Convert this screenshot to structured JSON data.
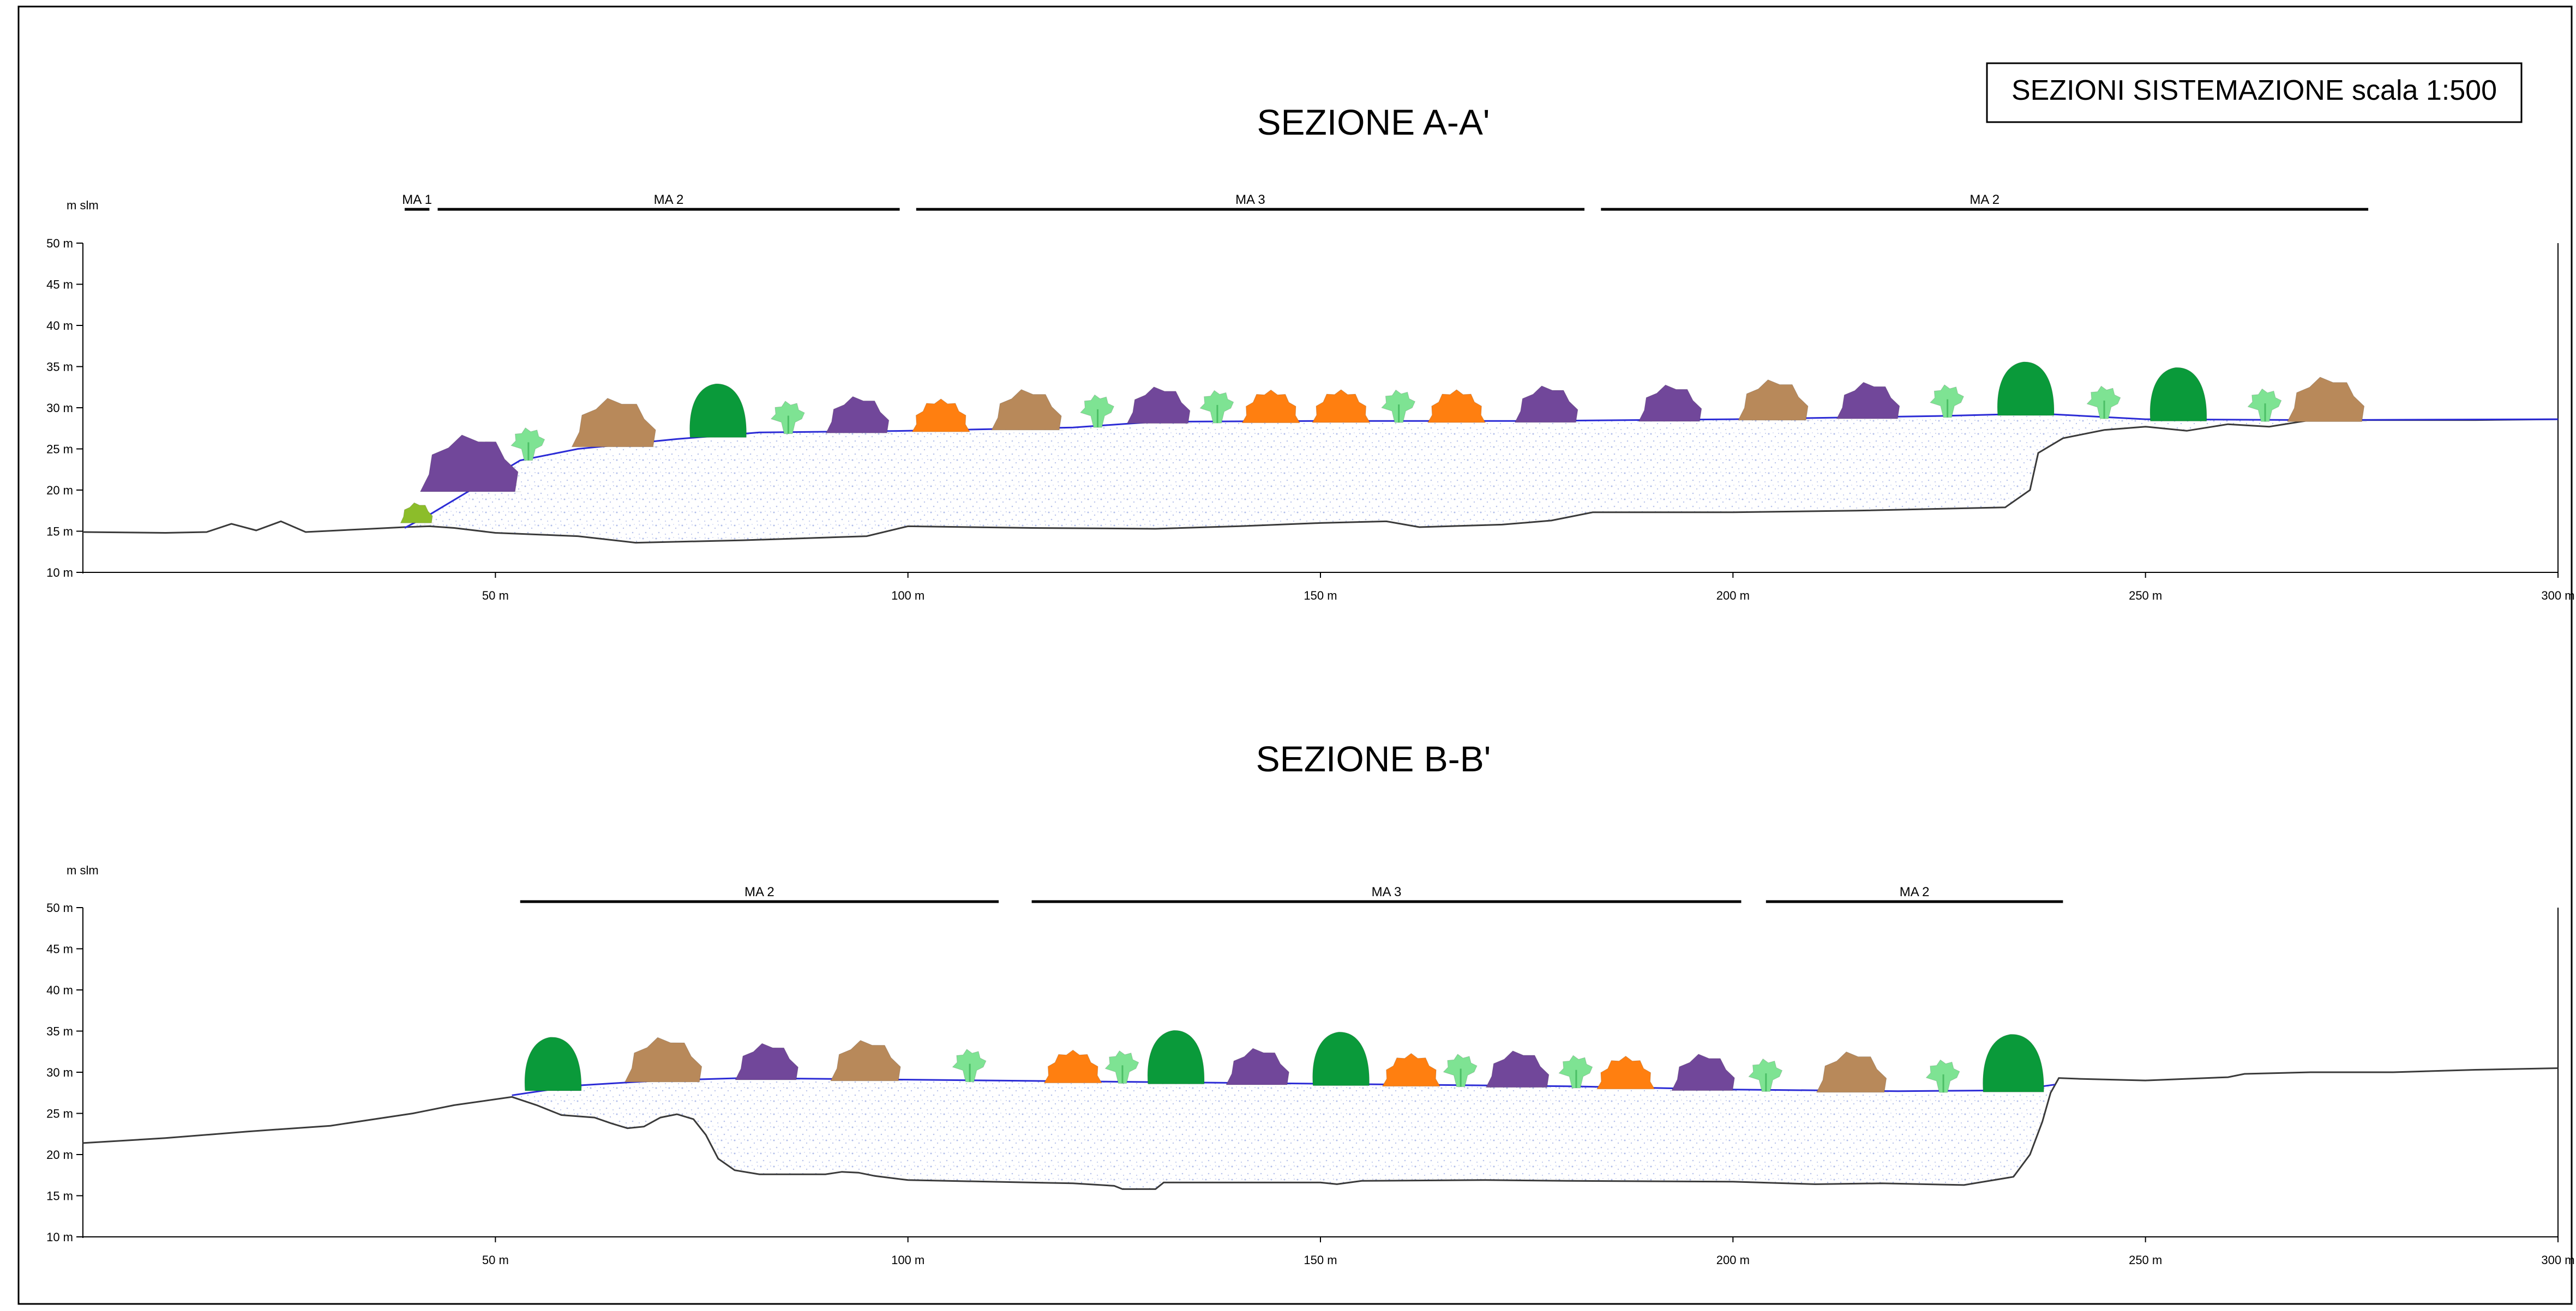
{
  "sheet_title": "SEZIONI SISTEMAZIONE scala 1:500",
  "colors": {
    "ground": "#3a3a3a",
    "design_profile": "#2b2bd6",
    "fill_dots": "#6f86d8",
    "dark_green_shrub": "#0a9a3a",
    "brown_shrub": "#b8895a",
    "purple_shrub": "#71479a",
    "orange_shrub": "#ff7f10",
    "light_green_herb": "#7ee393",
    "olive_shrub": "#8cbd2a"
  },
  "sections": [
    {
      "title": "SEZIONE A-A'",
      "y_unit_label": "m slm",
      "y_ticks": [
        "50 m",
        "45 m",
        "40 m",
        "35 m",
        "30 m",
        "25 m",
        "20 m",
        "15 m",
        "10 m"
      ],
      "x_ticks": [
        "50 m",
        "100 m",
        "150 m",
        "200 m",
        "250 m",
        "300 m"
      ],
      "x_range": [
        0,
        300
      ],
      "y_range": [
        10,
        50
      ],
      "zones": [
        {
          "label": "MA 1",
          "from": 39,
          "to": 42
        },
        {
          "label": "MA 2",
          "from": 43,
          "to": 99
        },
        {
          "label": "MA 3",
          "from": 101,
          "to": 182
        },
        {
          "label": "MA 2",
          "from": 184,
          "to": 277
        }
      ],
      "existing_ground": [
        [
          0,
          14.9
        ],
        [
          10,
          14.8
        ],
        [
          15,
          14.9
        ],
        [
          18,
          15.9
        ],
        [
          21,
          15.1
        ],
        [
          24,
          16.2
        ],
        [
          27,
          14.9
        ],
        [
          35,
          15.3
        ],
        [
          39,
          15.5
        ],
        [
          42,
          15.6
        ],
        [
          45,
          15.4
        ],
        [
          50,
          14.8
        ],
        [
          60,
          14.4
        ],
        [
          67,
          13.6
        ],
        [
          80,
          13.9
        ],
        [
          95,
          14.4
        ],
        [
          100,
          15.6
        ],
        [
          115,
          15.4
        ],
        [
          130,
          15.3
        ],
        [
          140,
          15.6
        ],
        [
          150,
          16
        ],
        [
          158,
          16.2
        ],
        [
          162,
          15.5
        ],
        [
          172,
          15.8
        ],
        [
          178,
          16.3
        ],
        [
          183,
          17.3
        ],
        [
          200,
          17.3
        ],
        [
          215,
          17.5
        ],
        [
          233,
          17.9
        ],
        [
          236,
          20
        ],
        [
          237,
          24.5
        ],
        [
          240,
          26.3
        ],
        [
          245,
          27.3
        ],
        [
          250,
          27.7
        ],
        [
          255,
          27.2
        ],
        [
          260,
          28
        ],
        [
          265,
          27.7
        ],
        [
          270,
          28.5
        ],
        [
          280,
          28.5
        ],
        [
          290,
          28.5
        ],
        [
          300,
          28.6
        ]
      ],
      "design_profile": [
        [
          39,
          15.4
        ],
        [
          42,
          17
        ],
        [
          53,
          23.6
        ],
        [
          60,
          25
        ],
        [
          72,
          26.2
        ],
        [
          82,
          27
        ],
        [
          100,
          27.2
        ],
        [
          120,
          27.6
        ],
        [
          130,
          28.3
        ],
        [
          150,
          28.4
        ],
        [
          175,
          28.4
        ],
        [
          200,
          28.6
        ],
        [
          225,
          29
        ],
        [
          237,
          29.3
        ],
        [
          250,
          28.6
        ],
        [
          270,
          28.5
        ],
        [
          300,
          28.6
        ]
      ],
      "shrubs": [
        {
          "type": "olive",
          "x": 40.5,
          "h": 2.5
        },
        {
          "type": "purple",
          "x": 47,
          "h": 7
        },
        {
          "type": "lightgreen",
          "x": 54,
          "h": 4
        },
        {
          "type": "brown",
          "x": 64.5,
          "h": 6
        },
        {
          "type": "darkgreen",
          "x": 77,
          "h": 6.5
        },
        {
          "type": "lightgreen",
          "x": 85.5,
          "h": 4
        },
        {
          "type": "purple",
          "x": 94,
          "h": 4.5
        },
        {
          "type": "orange",
          "x": 104,
          "h": 4
        },
        {
          "type": "brown",
          "x": 114.5,
          "h": 5
        },
        {
          "type": "lightgreen",
          "x": 123,
          "h": 4
        },
        {
          "type": "purple",
          "x": 130.5,
          "h": 4.5
        },
        {
          "type": "lightgreen",
          "x": 137.5,
          "h": 4
        },
        {
          "type": "orange",
          "x": 144,
          "h": 4
        },
        {
          "type": "orange",
          "x": 152.5,
          "h": 4
        },
        {
          "type": "lightgreen",
          "x": 159.5,
          "h": 4
        },
        {
          "type": "orange",
          "x": 166.5,
          "h": 4
        },
        {
          "type": "purple",
          "x": 177.5,
          "h": 4.5
        },
        {
          "type": "purple",
          "x": 192.5,
          "h": 4.5
        },
        {
          "type": "brown",
          "x": 205,
          "h": 5
        },
        {
          "type": "purple",
          "x": 216.5,
          "h": 4.5
        },
        {
          "type": "lightgreen",
          "x": 226,
          "h": 4
        },
        {
          "type": "darkgreen",
          "x": 235.5,
          "h": 6.5
        },
        {
          "type": "lightgreen",
          "x": 245,
          "h": 4
        },
        {
          "type": "darkgreen",
          "x": 254,
          "h": 6.5
        },
        {
          "type": "lightgreen",
          "x": 264.5,
          "h": 4
        },
        {
          "type": "brown",
          "x": 272,
          "h": 5.5
        }
      ]
    },
    {
      "title": "SEZIONE B-B'",
      "y_unit_label": "m slm",
      "y_ticks": [
        "50 m",
        "45 m",
        "40 m",
        "35 m",
        "30 m",
        "25 m",
        "20 m",
        "15 m",
        "10 m"
      ],
      "x_ticks": [
        "50 m",
        "100 m",
        "150 m",
        "200 m",
        "250 m",
        "300 m"
      ],
      "x_range": [
        0,
        300
      ],
      "y_range": [
        10,
        50
      ],
      "zones": [
        {
          "label": "MA 2",
          "from": 53,
          "to": 111
        },
        {
          "label": "MA 3",
          "from": 115,
          "to": 201
        },
        {
          "label": "MA 2",
          "from": 204,
          "to": 240
        }
      ],
      "existing_ground": [
        [
          0,
          21.4
        ],
        [
          10,
          22
        ],
        [
          20,
          22.8
        ],
        [
          30,
          23.5
        ],
        [
          40,
          25
        ],
        [
          45,
          26
        ],
        [
          52,
          27
        ],
        [
          55,
          26
        ],
        [
          58,
          24.8
        ],
        [
          62,
          24.5
        ],
        [
          64,
          23.8
        ],
        [
          66,
          23.2
        ],
        [
          68,
          23.4
        ],
        [
          70,
          24.5
        ],
        [
          72,
          24.9
        ],
        [
          74,
          24.3
        ],
        [
          75.5,
          22.4
        ],
        [
          77,
          19.5
        ],
        [
          79,
          18.1
        ],
        [
          82,
          17.6
        ],
        [
          90,
          17.6
        ],
        [
          92,
          17.9
        ],
        [
          94,
          17.8
        ],
        [
          96,
          17.4
        ],
        [
          100,
          16.9
        ],
        [
          120,
          16.5
        ],
        [
          125,
          16.2
        ],
        [
          126,
          15.8
        ],
        [
          130,
          15.8
        ],
        [
          131,
          16.6
        ],
        [
          150,
          16.6
        ],
        [
          152,
          16.4
        ],
        [
          155,
          16.8
        ],
        [
          170,
          16.9
        ],
        [
          180,
          16.8
        ],
        [
          200,
          16.7
        ],
        [
          210,
          16.4
        ],
        [
          218,
          16.5
        ],
        [
          228,
          16.3
        ],
        [
          234,
          17.3
        ],
        [
          236,
          20
        ],
        [
          237.5,
          24
        ],
        [
          238.5,
          27.5
        ],
        [
          239.5,
          29.3
        ],
        [
          242,
          29.2
        ],
        [
          250,
          29
        ],
        [
          260,
          29.4
        ],
        [
          262,
          29.8
        ],
        [
          270,
          30
        ],
        [
          280,
          30
        ],
        [
          290,
          30.3
        ],
        [
          300,
          30.5
        ]
      ],
      "design_profile": [
        [
          52,
          27.2
        ],
        [
          60,
          28.4
        ],
        [
          70,
          29
        ],
        [
          80,
          29.3
        ],
        [
          100,
          29.1
        ],
        [
          120,
          28.9
        ],
        [
          150,
          28.6
        ],
        [
          180,
          28.3
        ],
        [
          200,
          27.9
        ],
        [
          220,
          27.7
        ],
        [
          234,
          27.8
        ],
        [
          239,
          28.5
        ]
      ],
      "shrubs": [
        {
          "type": "darkgreen",
          "x": 57,
          "h": 6.5
        },
        {
          "type": "brown",
          "x": 70.5,
          "h": 5.5
        },
        {
          "type": "purple",
          "x": 83,
          "h": 4.5
        },
        {
          "type": "brown",
          "x": 95,
          "h": 5
        },
        {
          "type": "lightgreen",
          "x": 107.5,
          "h": 4
        },
        {
          "type": "orange",
          "x": 120,
          "h": 4
        },
        {
          "type": "lightgreen",
          "x": 126,
          "h": 4
        },
        {
          "type": "darkgreen",
          "x": 132.5,
          "h": 6.5
        },
        {
          "type": "purple",
          "x": 142.5,
          "h": 4.5
        },
        {
          "type": "darkgreen",
          "x": 152.5,
          "h": 6.5
        },
        {
          "type": "orange",
          "x": 161,
          "h": 4
        },
        {
          "type": "lightgreen",
          "x": 167,
          "h": 4
        },
        {
          "type": "purple",
          "x": 174,
          "h": 4.5
        },
        {
          "type": "lightgreen",
          "x": 181,
          "h": 4
        },
        {
          "type": "orange",
          "x": 187,
          "h": 4
        },
        {
          "type": "purple",
          "x": 196.5,
          "h": 4.5
        },
        {
          "type": "lightgreen",
          "x": 204,
          "h": 4
        },
        {
          "type": "brown",
          "x": 214.5,
          "h": 5
        },
        {
          "type": "lightgreen",
          "x": 225.5,
          "h": 4
        },
        {
          "type": "darkgreen",
          "x": 234,
          "h": 7
        }
      ]
    }
  ]
}
